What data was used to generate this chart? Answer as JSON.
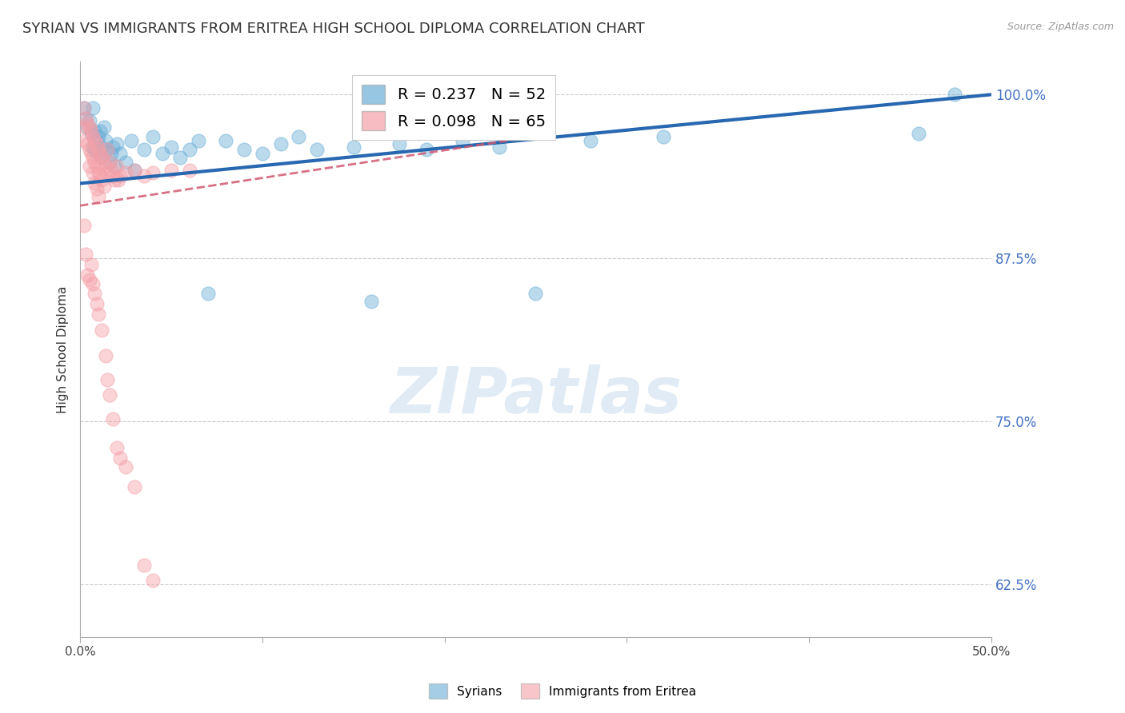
{
  "title": "SYRIAN VS IMMIGRANTS FROM ERITREA HIGH SCHOOL DIPLOMA CORRELATION CHART",
  "source": "Source: ZipAtlas.com",
  "ylabel": "High School Diploma",
  "xlim": [
    0.0,
    0.5
  ],
  "ylim": [
    0.585,
    1.025
  ],
  "xtick_positions": [
    0.0,
    0.1,
    0.2,
    0.3,
    0.4,
    0.5
  ],
  "xtick_labels": [
    "0.0%",
    "",
    "",
    "",
    "",
    "50.0%"
  ],
  "ytick_positions": [
    0.625,
    0.75,
    0.875,
    1.0
  ],
  "ytick_labels": [
    "62.5%",
    "75.0%",
    "87.5%",
    "100.0%"
  ],
  "blue_color": "#6aaed6",
  "pink_color": "#f4a0a8",
  "trend_blue_color": "#2868b0",
  "trend_pink_color": "#d05870",
  "watermark_text": "ZIPatlas",
  "background_color": "#FFFFFF",
  "grid_color": "#CCCCCC",
  "right_label_color": "#4472C4",
  "title_fontsize": 13,
  "label_fontsize": 11,
  "tick_fontsize": 11,
  "syrians_x": [
    0.002,
    0.003,
    0.004,
    0.005,
    0.006,
    0.007,
    0.007,
    0.008,
    0.008,
    0.009,
    0.01,
    0.01,
    0.011,
    0.012,
    0.012,
    0.013,
    0.014,
    0.015,
    0.016,
    0.017,
    0.018,
    0.019,
    0.02,
    0.022,
    0.025,
    0.028,
    0.03,
    0.035,
    0.04,
    0.045,
    0.05,
    0.055,
    0.06,
    0.065,
    0.07,
    0.08,
    0.09,
    0.1,
    0.11,
    0.12,
    0.13,
    0.15,
    0.16,
    0.175,
    0.19,
    0.21,
    0.23,
    0.25,
    0.28,
    0.32,
    0.46,
    0.48
  ],
  "syrians_y": [
    0.99,
    0.982,
    0.975,
    0.98,
    0.97,
    0.99,
    0.96,
    0.972,
    0.958,
    0.965,
    0.968,
    0.955,
    0.972,
    0.96,
    0.952,
    0.975,
    0.965,
    0.958,
    0.948,
    0.955,
    0.96,
    0.945,
    0.962,
    0.955,
    0.948,
    0.965,
    0.942,
    0.958,
    0.968,
    0.955,
    0.96,
    0.952,
    0.958,
    0.965,
    0.848,
    0.965,
    0.958,
    0.955,
    0.962,
    0.968,
    0.958,
    0.96,
    0.842,
    0.962,
    0.958,
    0.965,
    0.96,
    0.848,
    0.965,
    0.968,
    0.97,
    1.0
  ],
  "eritrea_x": [
    0.002,
    0.002,
    0.003,
    0.003,
    0.004,
    0.004,
    0.005,
    0.005,
    0.005,
    0.006,
    0.006,
    0.007,
    0.007,
    0.007,
    0.008,
    0.008,
    0.008,
    0.009,
    0.009,
    0.009,
    0.01,
    0.01,
    0.01,
    0.011,
    0.011,
    0.012,
    0.012,
    0.013,
    0.013,
    0.014,
    0.015,
    0.015,
    0.016,
    0.017,
    0.018,
    0.019,
    0.02,
    0.021,
    0.022,
    0.025,
    0.03,
    0.035,
    0.04,
    0.05,
    0.06,
    0.002,
    0.003,
    0.004,
    0.005,
    0.006,
    0.007,
    0.008,
    0.009,
    0.01,
    0.012,
    0.014,
    0.015,
    0.016,
    0.018,
    0.02,
    0.022,
    0.025,
    0.03,
    0.035,
    0.04
  ],
  "eritrea_y": [
    0.99,
    0.975,
    0.982,
    0.965,
    0.978,
    0.962,
    0.975,
    0.958,
    0.945,
    0.972,
    0.955,
    0.968,
    0.952,
    0.94,
    0.965,
    0.948,
    0.932,
    0.962,
    0.945,
    0.928,
    0.958,
    0.94,
    0.922,
    0.955,
    0.938,
    0.952,
    0.935,
    0.948,
    0.93,
    0.945,
    0.958,
    0.94,
    0.948,
    0.942,
    0.938,
    0.935,
    0.945,
    0.935,
    0.938,
    0.94,
    0.942,
    0.938,
    0.94,
    0.942,
    0.942,
    0.9,
    0.878,
    0.862,
    0.858,
    0.87,
    0.855,
    0.848,
    0.84,
    0.832,
    0.82,
    0.8,
    0.782,
    0.77,
    0.752,
    0.73,
    0.722,
    0.715,
    0.7,
    0.64,
    0.628
  ]
}
